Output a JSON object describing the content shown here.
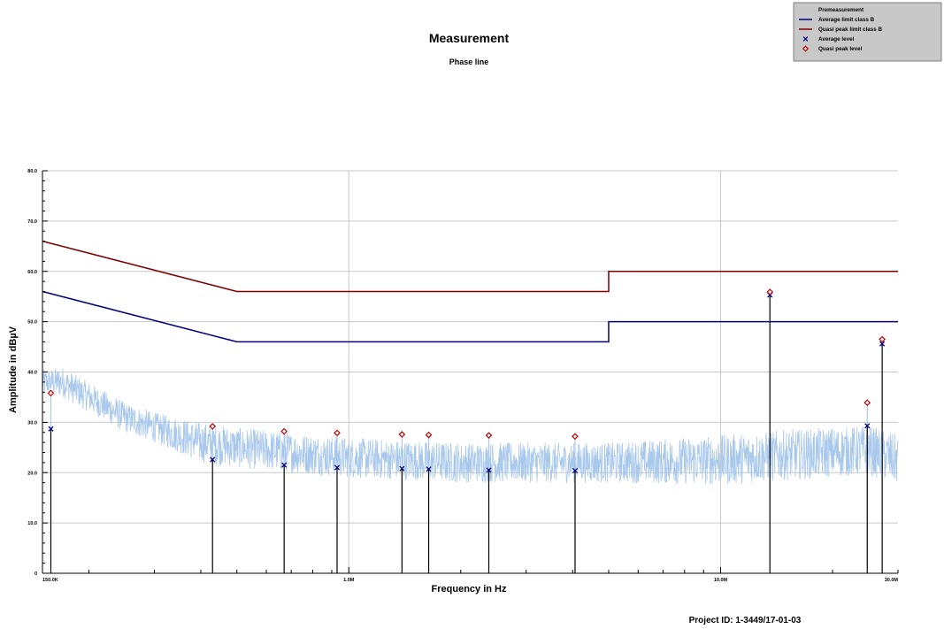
{
  "chart_data": {
    "type": "line",
    "title": "Measurement",
    "subtitle": "Phase line",
    "xlabel": "Frequency in Hz",
    "ylabel": "Amplitude in dBµV",
    "x_scale": "log",
    "xlim": [
      150000,
      30000000
    ],
    "ylim": [
      0,
      80
    ],
    "grid": true,
    "legend_position": "top-right",
    "x_tick_values": [
      150000,
      1000000,
      10000000,
      30000000
    ],
    "x_tick_labels": [
      "150.0K",
      "1.0M",
      "10.0M",
      "30.0M"
    ],
    "y_tick_values": [
      0,
      10,
      20,
      30,
      40,
      50,
      60,
      70,
      80
    ],
    "y_tick_labels": [
      "0",
      "10.0",
      "20.0",
      "30.0",
      "40.0",
      "50.0",
      "60.0",
      "70.0",
      "80.0"
    ],
    "legend": [
      {
        "label": "Premeasurement",
        "marker": "line",
        "color": "#a8c8ec"
      },
      {
        "label": "Average limit class B",
        "marker": "line",
        "color": "#000080"
      },
      {
        "label": "Quasi peak limit class B",
        "marker": "line",
        "color": "#800000"
      },
      {
        "label": "Average level",
        "marker": "x",
        "color": "#000080"
      },
      {
        "label": "Quasi peak level",
        "marker": "diamond",
        "color": "#c00000"
      }
    ],
    "series": [
      {
        "name": "Quasi peak limit class B",
        "color": "#800000",
        "x": [
          150000,
          500000,
          500000,
          5000000,
          5000000,
          30000000
        ],
        "y": [
          66,
          56,
          56,
          56,
          60,
          60
        ]
      },
      {
        "name": "Average limit class B",
        "color": "#000080",
        "x": [
          150000,
          500000,
          500000,
          5000000,
          5000000,
          30000000
        ],
        "y": [
          56,
          46,
          46,
          46,
          50,
          50
        ]
      },
      {
        "name": "Quasi peak level",
        "color": "#c00000",
        "x": [
          158000,
          430000,
          670000,
          930000,
          1390000,
          1640000,
          2380000,
          4060000,
          13570000,
          24800000,
          27200000
        ],
        "y": [
          35.8,
          29.2,
          28.2,
          27.9,
          27.6,
          27.5,
          27.4,
          27.2,
          55.9,
          33.9,
          46.5
        ]
      },
      {
        "name": "Average level",
        "color": "#000080",
        "x": [
          158000,
          430000,
          670000,
          930000,
          1390000,
          1640000,
          2380000,
          4060000,
          13570000,
          24800000,
          27200000
        ],
        "y": [
          28.7,
          22.6,
          21.5,
          21.0,
          20.8,
          20.7,
          20.5,
          20.4,
          55.3,
          29.3,
          45.6
        ]
      },
      {
        "name": "Premeasurement",
        "color": "#a8c8ec",
        "envelope": {
          "x": [
            150000,
            170000,
            200000,
            250000,
            300000,
            400000,
            500000,
            700000,
            1000000,
            2000000,
            5000000,
            10000000,
            15000000,
            20000000,
            25000000,
            30000000
          ],
          "mean": [
            38,
            38,
            35,
            31,
            29,
            26,
            25,
            24,
            23,
            22,
            22,
            22.5,
            23.5,
            24,
            24.5,
            22.5
          ],
          "spread": [
            2.5,
            3,
            3,
            3,
            3,
            4,
            4,
            4,
            4,
            4,
            4,
            5,
            5,
            5,
            5,
            5
          ]
        }
      }
    ]
  },
  "footer": {
    "project_id": "Project ID: 1-3449/17-01-03"
  }
}
